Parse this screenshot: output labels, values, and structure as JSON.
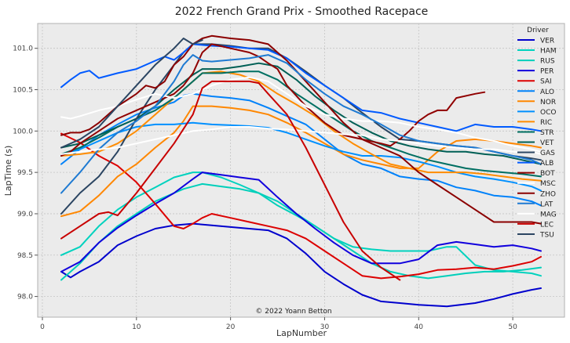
{
  "chart_data": {
    "type": "line",
    "title": "2022 French Grand Prix - Smoothed Racepace",
    "xlabel": "LapNumber",
    "ylabel": "LapTime (s)",
    "xlim": [
      -0.5,
      55.5
    ],
    "ylim": [
      97.75,
      101.3
    ],
    "x_ticks": [
      0,
      10,
      20,
      30,
      40,
      50
    ],
    "y_ticks": [
      98.0,
      98.5,
      99.0,
      99.5,
      100.0,
      100.5,
      101.0
    ],
    "grid": true,
    "legend_title": "Driver",
    "legend_position": "top-right",
    "annotation": "© 2022 Yoann Betton",
    "series": [
      {
        "name": "VER",
        "color": "#0000cd",
        "x": [
          2,
          3,
          4,
          6,
          8,
          10,
          12,
          14,
          16,
          18,
          20,
          22,
          24,
          26,
          28,
          30,
          32,
          34,
          36,
          38,
          40,
          43,
          46,
          48,
          50,
          52,
          53
        ],
        "y": [
          98.3,
          98.23,
          98.3,
          98.42,
          98.62,
          98.73,
          98.82,
          98.86,
          98.88,
          98.86,
          98.84,
          98.82,
          98.8,
          98.7,
          98.52,
          98.3,
          98.15,
          98.02,
          97.94,
          97.92,
          97.9,
          97.88,
          97.92,
          97.97,
          98.03,
          98.08,
          98.1
        ]
      },
      {
        "name": "HAM",
        "color": "#00d2be",
        "x": [
          2,
          4,
          6,
          8,
          10,
          12,
          14,
          16,
          17,
          19,
          21,
          23,
          25,
          27,
          29,
          31,
          33,
          35,
          37,
          39,
          41,
          43,
          44,
          46,
          48,
          50,
          52,
          53
        ],
        "y": [
          98.5,
          98.6,
          98.85,
          99.05,
          99.2,
          99.32,
          99.44,
          99.5,
          99.5,
          99.44,
          99.35,
          99.25,
          99.15,
          99.0,
          98.85,
          98.7,
          98.6,
          98.57,
          98.55,
          98.55,
          98.55,
          98.6,
          98.6,
          98.38,
          98.32,
          98.3,
          98.28,
          98.25
        ]
      },
      {
        "name": "RUS",
        "color": "#00cfba",
        "x": [
          2,
          4,
          6,
          8,
          10,
          12,
          14,
          15,
          17,
          19,
          21,
          23,
          25,
          27,
          29,
          31,
          33,
          35,
          37,
          39,
          41,
          43,
          45,
          47,
          49,
          51,
          53
        ],
        "y": [
          98.2,
          98.4,
          98.65,
          98.85,
          99.0,
          99.15,
          99.25,
          99.3,
          99.36,
          99.33,
          99.3,
          99.25,
          99.1,
          98.98,
          98.85,
          98.7,
          98.55,
          98.4,
          98.3,
          98.25,
          98.22,
          98.25,
          98.28,
          98.3,
          98.3,
          98.32,
          98.35
        ]
      },
      {
        "name": "PER",
        "color": "#1100dd",
        "x": [
          2,
          4,
          6,
          8,
          10,
          12,
          14,
          16,
          17,
          19,
          21,
          23,
          25,
          27,
          29,
          31,
          33,
          35,
          36,
          38,
          40,
          42,
          44,
          46,
          48,
          50,
          52,
          53
        ],
        "y": [
          98.3,
          98.42,
          98.65,
          98.83,
          98.98,
          99.12,
          99.25,
          99.42,
          99.5,
          99.47,
          99.44,
          99.41,
          99.2,
          99.0,
          98.82,
          98.65,
          98.5,
          98.4,
          98.4,
          98.4,
          98.45,
          98.62,
          98.66,
          98.63,
          98.6,
          98.62,
          98.58,
          98.55
        ]
      },
      {
        "name": "SAI",
        "color": "#dc0000",
        "x": [
          2,
          4,
          6,
          8,
          10,
          12,
          14,
          15,
          16,
          17,
          18,
          20,
          22,
          24,
          26,
          28,
          30,
          32,
          34,
          36,
          38,
          40,
          42,
          44,
          46,
          48,
          50,
          52,
          53
        ],
        "y": [
          99.97,
          99.86,
          99.7,
          99.58,
          99.38,
          99.12,
          98.85,
          98.82,
          98.88,
          98.95,
          99.0,
          98.95,
          98.9,
          98.85,
          98.8,
          98.7,
          98.55,
          98.4,
          98.25,
          98.22,
          98.24,
          98.27,
          98.32,
          98.33,
          98.35,
          98.33,
          98.37,
          98.42,
          98.48
        ]
      },
      {
        "name": "ALO",
        "color": "#0082fa",
        "x": [
          2,
          4,
          6,
          8,
          10,
          12,
          14,
          15,
          16,
          18,
          20,
          22,
          24,
          26,
          28,
          30,
          32,
          34,
          36,
          38,
          40,
          42,
          44,
          46,
          48,
          50,
          52,
          53
        ],
        "y": [
          99.6,
          99.78,
          99.95,
          100.08,
          100.2,
          100.28,
          100.35,
          100.43,
          100.45,
          100.42,
          100.4,
          100.37,
          100.28,
          100.18,
          100.08,
          99.9,
          99.72,
          99.6,
          99.55,
          99.45,
          99.42,
          99.4,
          99.32,
          99.28,
          99.22,
          99.2,
          99.15,
          99.1
        ]
      },
      {
        "name": "NOR",
        "color": "#ff8700",
        "x": [
          2,
          4,
          6,
          8,
          10,
          12,
          14,
          15,
          16,
          18,
          20,
          22,
          24,
          26,
          28,
          30,
          32,
          34,
          36,
          38,
          40,
          42,
          44,
          46,
          48,
          50,
          52,
          53
        ],
        "y": [
          98.97,
          99.03,
          99.22,
          99.45,
          99.6,
          99.8,
          99.98,
          100.12,
          100.3,
          100.3,
          100.28,
          100.25,
          100.2,
          100.1,
          99.98,
          99.85,
          99.72,
          99.65,
          99.6,
          99.55,
          99.55,
          99.75,
          99.88,
          99.9,
          99.88,
          99.85,
          99.82,
          99.8
        ]
      },
      {
        "name": "OCO",
        "color": "#0090ff",
        "x": [
          2,
          4,
          6,
          8,
          10,
          12,
          14,
          16,
          18,
          20,
          22,
          24,
          26,
          28,
          30,
          32,
          34,
          36,
          38,
          40,
          42,
          44,
          46,
          48,
          50,
          52,
          53
        ],
        "y": [
          99.7,
          99.78,
          99.88,
          99.98,
          100.05,
          100.08,
          100.08,
          100.1,
          100.08,
          100.07,
          100.06,
          100.04,
          99.98,
          99.9,
          99.82,
          99.75,
          99.7,
          99.7,
          99.68,
          99.63,
          99.57,
          99.5,
          99.45,
          99.42,
          99.38,
          99.33,
          99.28
        ]
      },
      {
        "name": "RIC",
        "color": "#ff8c00",
        "x": [
          2,
          4,
          6,
          8,
          10,
          12,
          14,
          16,
          17,
          19,
          21,
          23,
          25,
          27,
          29,
          31,
          33,
          35,
          37,
          39,
          41,
          43,
          45,
          47,
          49,
          51,
          53
        ],
        "y": [
          99.7,
          99.72,
          99.75,
          99.85,
          100.0,
          100.2,
          100.4,
          100.6,
          100.7,
          100.72,
          100.68,
          100.6,
          100.45,
          100.32,
          100.18,
          100.0,
          99.85,
          99.72,
          99.6,
          99.55,
          99.5,
          99.5,
          99.5,
          99.48,
          99.45,
          99.42,
          99.4
        ]
      },
      {
        "name": "STR",
        "color": "#006f62",
        "x": [
          2,
          4,
          6,
          8,
          10,
          12,
          14,
          16,
          17,
          19,
          21,
          23,
          25,
          27,
          29,
          31,
          33,
          35,
          37,
          39,
          41,
          43,
          45,
          47,
          49,
          51,
          53
        ],
        "y": [
          99.72,
          99.8,
          99.92,
          100.05,
          100.15,
          100.25,
          100.4,
          100.6,
          100.7,
          100.7,
          100.72,
          100.72,
          100.62,
          100.45,
          100.3,
          100.15,
          100.0,
          99.88,
          99.8,
          99.72,
          99.65,
          99.6,
          99.55,
          99.52,
          99.5,
          99.48,
          99.45
        ]
      },
      {
        "name": "VET",
        "color": "#005f55",
        "x": [
          2,
          4,
          6,
          8,
          10,
          12,
          14,
          16,
          17,
          19,
          21,
          23,
          25,
          27,
          29,
          31,
          33,
          35,
          37,
          39,
          41,
          43,
          45,
          47,
          49,
          51,
          53
        ],
        "y": [
          99.8,
          99.85,
          99.95,
          100.05,
          100.15,
          100.3,
          100.5,
          100.68,
          100.75,
          100.75,
          100.78,
          100.82,
          100.78,
          100.62,
          100.42,
          100.25,
          100.1,
          99.98,
          99.88,
          99.82,
          99.78,
          99.75,
          99.75,
          99.72,
          99.7,
          99.65,
          99.6
        ]
      },
      {
        "name": "GAS",
        "color": "#2b4562",
        "x": [
          2,
          4,
          6,
          8,
          10,
          12,
          14,
          15,
          16,
          18,
          20,
          22,
          24,
          26,
          28,
          30,
          32,
          34,
          36,
          38,
          40,
          42,
          44,
          46,
          48,
          50,
          52,
          53
        ],
        "y": [
          99.0,
          99.25,
          99.45,
          99.75,
          100.15,
          100.5,
          100.8,
          100.95,
          101.05,
          101.05,
          101.03,
          101.0,
          101.0,
          100.88,
          100.72,
          100.55,
          100.4,
          100.22,
          100.05,
          99.9,
          99.88,
          99.85,
          99.82,
          99.8,
          99.75,
          99.7,
          99.67,
          99.65
        ]
      },
      {
        "name": "ALB",
        "color": "#005aff",
        "x": [
          2,
          3,
          4,
          5,
          6,
          8,
          10,
          12,
          13,
          14,
          15,
          16,
          18,
          20,
          22,
          24,
          26,
          28,
          30,
          32,
          34,
          36,
          38,
          40,
          42,
          44,
          46,
          48,
          50,
          52,
          53
        ],
        "y": [
          100.53,
          100.62,
          100.7,
          100.73,
          100.64,
          100.7,
          100.75,
          100.85,
          100.9,
          100.86,
          100.95,
          101.05,
          101.03,
          101.02,
          101.0,
          100.98,
          100.88,
          100.7,
          100.55,
          100.4,
          100.25,
          100.22,
          100.15,
          100.1,
          100.05,
          100.0,
          100.08,
          100.05,
          100.05,
          100.02,
          100.0
        ]
      },
      {
        "name": "BOT",
        "color": "#900000",
        "x": [
          2,
          3,
          4,
          6,
          8,
          10,
          12,
          14,
          15,
          16,
          17,
          18,
          20,
          22,
          23,
          24,
          25,
          26,
          28,
          30,
          32,
          34,
          36,
          37,
          38,
          39,
          40,
          41,
          42,
          43,
          44,
          46,
          47
        ],
        "y": [
          99.7,
          99.75,
          99.85,
          100.0,
          100.15,
          100.25,
          100.35,
          100.45,
          100.55,
          100.7,
          100.95,
          101.05,
          101.0,
          100.95,
          100.9,
          100.82,
          100.75,
          100.55,
          100.3,
          100.1,
          99.95,
          99.9,
          99.85,
          99.82,
          99.9,
          100.0,
          100.12,
          100.2,
          100.25,
          100.25,
          100.4,
          100.45,
          100.47
        ]
      },
      {
        "name": "MSC",
        "color": "#ffffff",
        "x": [
          2,
          3,
          4,
          6,
          8,
          10,
          12,
          14,
          16,
          18,
          20,
          22,
          24,
          26,
          28,
          30,
          32,
          34,
          36,
          38,
          40,
          42,
          44,
          46,
          48,
          50,
          52,
          53
        ],
        "y": [
          100.17,
          100.15,
          100.18,
          100.25,
          100.3,
          100.38,
          100.45,
          100.4,
          100.45,
          100.55,
          100.62,
          100.65,
          100.6,
          100.45,
          100.3,
          100.2,
          100.15,
          100.12,
          100.12,
          100.1,
          100.05,
          100.02,
          99.98,
          99.92,
          99.88,
          99.82,
          99.78,
          99.75
        ]
      },
      {
        "name": "ZHO",
        "color": "#8b0000",
        "x": [
          2,
          3,
          4,
          5,
          6,
          8,
          10,
          11,
          12,
          13,
          14,
          15,
          16,
          17,
          18,
          20,
          22,
          24,
          25,
          26,
          28,
          30,
          32,
          34,
          36,
          38,
          40,
          42,
          44,
          46,
          48,
          50,
          52,
          53
        ],
        "y": [
          99.95,
          99.98,
          99.98,
          100.02,
          100.1,
          100.3,
          100.45,
          100.55,
          100.52,
          100.6,
          100.8,
          100.9,
          101.05,
          101.12,
          101.15,
          101.12,
          101.1,
          101.05,
          100.95,
          100.85,
          100.6,
          100.35,
          100.1,
          99.9,
          99.8,
          99.7,
          99.5,
          99.35,
          99.2,
          99.05,
          98.9,
          98.9,
          98.9,
          98.88
        ]
      },
      {
        "name": "LAT",
        "color": "#1e7ad2",
        "x": [
          2,
          4,
          6,
          8,
          10,
          12,
          14,
          15,
          16,
          17,
          18,
          20,
          22,
          24,
          26,
          28,
          30,
          32,
          34,
          36,
          38,
          40,
          42,
          44,
          46,
          48,
          50,
          52,
          53
        ],
        "y": [
          99.25,
          99.5,
          99.78,
          99.98,
          100.12,
          100.3,
          100.6,
          100.8,
          100.92,
          100.85,
          100.84,
          100.86,
          100.88,
          100.92,
          100.82,
          100.62,
          100.45,
          100.3,
          100.2,
          100.08,
          99.95,
          99.88,
          99.85,
          99.82,
          99.8,
          99.75,
          99.7,
          99.65,
          99.6
        ]
      },
      {
        "name": "MAG",
        "color": "#ffffff",
        "x": [
          2,
          4,
          6,
          8,
          10,
          12,
          14,
          16,
          18,
          20,
          22,
          24,
          26,
          28,
          30,
          32,
          34,
          36,
          38,
          40,
          42,
          44,
          46,
          48,
          50,
          52,
          53
        ],
        "y": [
          99.72,
          99.75,
          99.78,
          99.8,
          99.85,
          99.9,
          99.95,
          100.0,
          100.02,
          100.05,
          100.05,
          100.03,
          100.02,
          100.0,
          99.98,
          99.96,
          99.95,
          99.9,
          99.88,
          99.85,
          99.82,
          99.8,
          99.78,
          99.78,
          99.75,
          99.75,
          99.72
        ]
      },
      {
        "name": "LEC",
        "color": "#c80000",
        "x": [
          2,
          4,
          6,
          7,
          8,
          10,
          12,
          14,
          16,
          17,
          18,
          20,
          22,
          23,
          24,
          26,
          28,
          30,
          32,
          34,
          36,
          38
        ],
        "y": [
          98.7,
          98.85,
          99.0,
          99.02,
          98.98,
          99.25,
          99.55,
          99.85,
          100.2,
          100.52,
          100.6,
          100.6,
          100.6,
          100.58,
          100.45,
          100.2,
          99.8,
          99.35,
          98.9,
          98.55,
          98.35,
          98.2
        ]
      },
      {
        "name": "TSU",
        "color": "#2b4562",
        "x": [
          2,
          4,
          6,
          8,
          10,
          12,
          14,
          15,
          16,
          17
        ],
        "y": [
          99.8,
          99.9,
          100.05,
          100.3,
          100.55,
          100.8,
          101.0,
          101.12,
          101.05,
          101.1
        ]
      }
    ]
  }
}
